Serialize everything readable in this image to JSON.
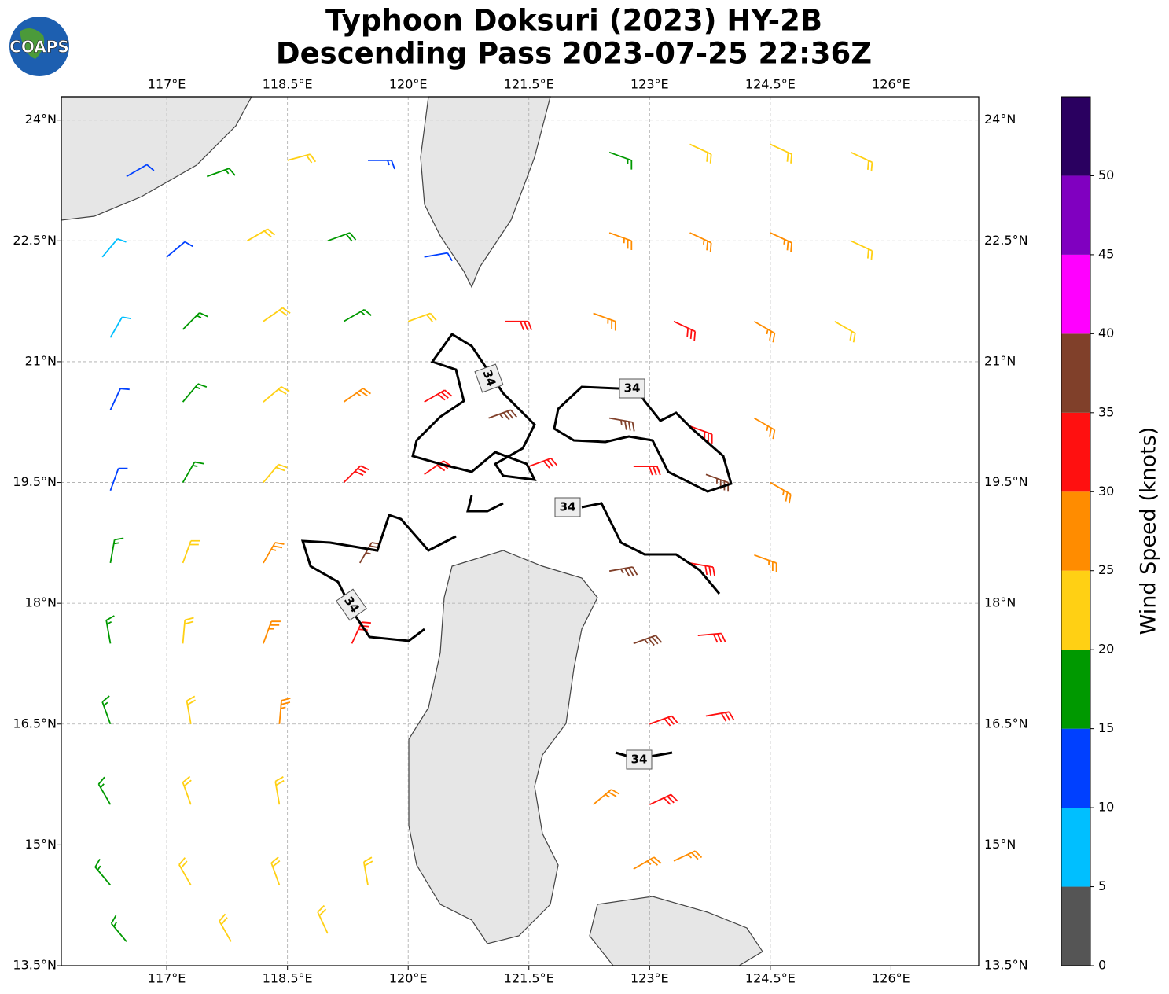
{
  "chart_data": {
    "type": "wind-barb-map",
    "title": [
      "Typhoon Doksuri (2023) HY-2B",
      "Descending Pass 2023-07-25 22:36Z"
    ],
    "logo": "COAPS",
    "xlim": [
      115.69,
      127.09
    ],
    "ylim": [
      13.5,
      24.29
    ],
    "xticks": [
      {
        "value": 117,
        "label": "117°E"
      },
      {
        "value": 118.5,
        "label": "118.5°E"
      },
      {
        "value": 120,
        "label": "120°E"
      },
      {
        "value": 121.5,
        "label": "121.5°E"
      },
      {
        "value": 123,
        "label": "123°E"
      },
      {
        "value": 124.5,
        "label": "124.5°E"
      },
      {
        "value": 126,
        "label": "126°E"
      }
    ],
    "yticks": [
      {
        "value": 13.5,
        "label": "13.5°N"
      },
      {
        "value": 15,
        "label": "15°N"
      },
      {
        "value": 16.5,
        "label": "16.5°N"
      },
      {
        "value": 18,
        "label": "18°N"
      },
      {
        "value": 19.5,
        "label": "19.5°N"
      },
      {
        "value": 21,
        "label": "21°N"
      },
      {
        "value": 22.5,
        "label": "22.5°N"
      },
      {
        "value": 24,
        "label": "24°N"
      }
    ],
    "grid": true,
    "contour_level": 34,
    "colorbar": {
      "label": "Wind Speed (knots)",
      "lim": [
        0,
        55
      ],
      "bounds": [
        0,
        5,
        10,
        15,
        20,
        25,
        30,
        35,
        40,
        45,
        50,
        55
      ],
      "colors": [
        "#555555",
        "#00bfff",
        "#0040ff",
        "#009900",
        "#ffd014",
        "#ff8c00",
        "#ff1010",
        "#80402a",
        "#ff00ff",
        "#8000c0",
        "#2a0060"
      ],
      "ticks": [
        0,
        5,
        10,
        15,
        20,
        25,
        30,
        35,
        40,
        45,
        50
      ]
    },
    "barbs": {
      "lon": [
        116.5,
        117.5,
        118.5,
        119.5,
        122.5,
        123.5,
        124.5,
        125.5,
        116.2,
        117,
        118,
        119,
        120.2,
        122.5,
        123.5,
        124.5,
        125.5,
        116.3,
        117.2,
        118.2,
        119.2,
        120,
        121.2,
        122.3,
        123.3,
        124.3,
        125.3,
        116.3,
        117.2,
        118.2,
        119.2,
        120.2,
        121,
        122.5,
        123.5,
        124.3,
        116.3,
        117.2,
        118.2,
        119.2,
        120.2,
        121.5,
        122.8,
        123.7,
        124.5,
        116.3,
        117.2,
        118.2,
        119.4,
        122.5,
        123.5,
        124.3,
        116.3,
        117.2,
        118.2,
        119.3,
        122.8,
        123.6,
        116.3,
        117.3,
        118.4,
        123,
        123.7,
        116.3,
        117.3,
        118.4,
        122.3,
        123,
        116.3,
        117.3,
        118.4,
        119.5,
        122.8,
        123.3,
        116.5,
        117.8,
        119
      ],
      "lat": [
        23.3,
        23.3,
        23.5,
        23.5,
        23.6,
        23.7,
        23.7,
        23.6,
        22.3,
        22.3,
        22.5,
        22.5,
        22.3,
        22.6,
        22.6,
        22.6,
        22.5,
        21.3,
        21.4,
        21.5,
        21.5,
        21.5,
        21.5,
        21.6,
        21.5,
        21.5,
        21.5,
        20.4,
        20.5,
        20.5,
        20.5,
        20.5,
        20.3,
        20.3,
        20.2,
        20.3,
        19.4,
        19.5,
        19.5,
        19.5,
        19.6,
        19.7,
        19.7,
        19.6,
        19.5,
        18.5,
        18.5,
        18.5,
        18.5,
        18.4,
        18.5,
        18.6,
        17.5,
        17.5,
        17.5,
        17.5,
        17.5,
        17.6,
        16.5,
        16.5,
        16.5,
        16.5,
        16.6,
        15.5,
        15.5,
        15.5,
        15.5,
        15.5,
        14.5,
        14.5,
        14.5,
        14.5,
        14.7,
        14.8,
        13.8,
        13.8,
        13.9
      ],
      "speed": [
        12,
        17,
        22,
        14,
        17,
        22,
        22,
        22,
        8,
        12,
        20,
        18,
        10,
        27,
        27,
        27,
        22,
        8,
        17,
        22,
        17,
        22,
        32,
        27,
        32,
        27,
        22,
        12,
        17,
        22,
        27,
        32,
        37,
        37,
        32,
        27,
        12,
        17,
        22,
        32,
        32,
        32,
        32,
        37,
        27,
        17,
        22,
        27,
        37,
        37,
        32,
        27,
        17,
        22,
        27,
        32,
        37,
        32,
        17,
        22,
        27,
        32,
        32,
        17,
        22,
        22,
        27,
        32,
        17,
        22,
        22,
        22,
        27,
        27,
        17,
        22,
        22
      ],
      "dir": [
        60,
        70,
        75,
        90,
        110,
        115,
        115,
        115,
        40,
        50,
        60,
        70,
        80,
        110,
        115,
        115,
        115,
        30,
        45,
        55,
        60,
        70,
        90,
        110,
        115,
        120,
        120,
        25,
        40,
        50,
        55,
        60,
        70,
        100,
        110,
        120,
        20,
        30,
        40,
        45,
        55,
        70,
        90,
        110,
        120,
        10,
        20,
        30,
        30,
        80,
        100,
        110,
        350,
        5,
        20,
        25,
        70,
        85,
        340,
        350,
        5,
        70,
        80,
        330,
        340,
        350,
        50,
        65,
        320,
        330,
        340,
        350,
        60,
        65,
        320,
        330,
        335
      ]
    }
  }
}
